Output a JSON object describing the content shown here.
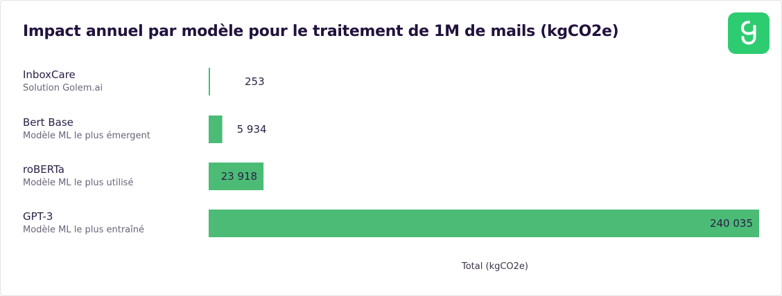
{
  "chart_data": {
    "type": "bar",
    "orientation": "horizontal",
    "title": "Impact annuel par modèle pour le traitement de 1M de mails (kgCO2e)",
    "categories": [
      "InboxCare",
      "Bert Base",
      "roBERTa",
      "GPT-3"
    ],
    "subtitles": [
      "Solution Golem.ai",
      "Modèle ML le plus émergent",
      "Modèle ML le plus utilisé",
      "Modèle ML le plus entraîné"
    ],
    "values": [
      253,
      5934,
      23918,
      240035
    ],
    "value_labels": [
      "253",
      "5 934",
      "23 918",
      "240 035"
    ],
    "xlabel": "Total (kgCO2e)",
    "xlim": [
      0,
      240035
    ],
    "grid": false,
    "bar_color": "#4bbb76"
  },
  "logo": {
    "icon": "golem-logo-icon",
    "color": "#2ecc71"
  },
  "colors": {
    "title": "#22123d",
    "text": "#2a1e45",
    "subtext": "#6b6378"
  }
}
